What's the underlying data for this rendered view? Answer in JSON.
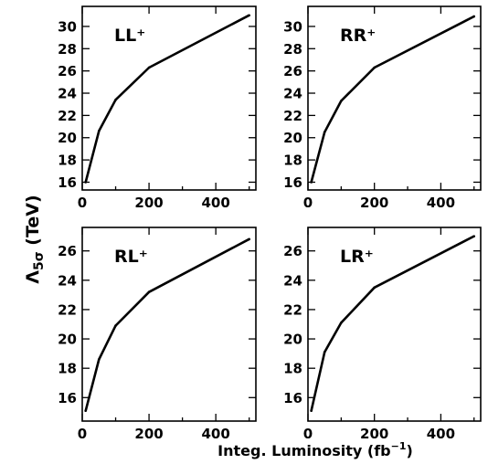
{
  "x_axis_title": "Integ. Luminosity (fb",
  "x_axis_unit_exponent": "−1",
  "x_axis_title_suffix": ")",
  "y_axis_title_symbol": "Λ",
  "y_axis_title_subscript": "5σ",
  "y_axis_title_unit": " (TeV)",
  "chart_data": [
    {
      "type": "line",
      "label": "LL⁺",
      "x": [
        10,
        50,
        100,
        200,
        500
      ],
      "y": [
        16.0,
        20.6,
        23.4,
        26.3,
        31.0
      ],
      "xlim": [
        0,
        520
      ],
      "ylim": [
        15.3,
        31.8
      ],
      "xticks": [
        0,
        200,
        400
      ],
      "xtick_labels": [
        "0",
        "200",
        "400"
      ],
      "yticks": [
        16,
        18,
        20,
        22,
        24,
        26,
        28,
        30
      ],
      "ytick_labels": [
        "16",
        "18",
        "20",
        "22",
        "24",
        "26",
        "28",
        "30"
      ],
      "grid": false
    },
    {
      "type": "line",
      "label": "RR⁺",
      "x": [
        10,
        50,
        100,
        200,
        500
      ],
      "y": [
        16.0,
        20.5,
        23.3,
        26.3,
        30.9
      ],
      "xlim": [
        0,
        520
      ],
      "ylim": [
        15.3,
        31.8
      ],
      "xticks": [
        0,
        200,
        400
      ],
      "xtick_labels": [
        "0",
        "200",
        "400"
      ],
      "yticks": [
        16,
        18,
        20,
        22,
        24,
        26,
        28,
        30
      ],
      "ytick_labels": [
        "16",
        "18",
        "20",
        "22",
        "24",
        "26",
        "28",
        "30"
      ],
      "grid": false
    },
    {
      "type": "line",
      "label": "RL⁺",
      "x": [
        10,
        50,
        100,
        200,
        500
      ],
      "y": [
        15.1,
        18.6,
        20.9,
        23.2,
        26.8
      ],
      "xlim": [
        0,
        520
      ],
      "ylim": [
        14.4,
        27.6
      ],
      "xticks": [
        0,
        200,
        400
      ],
      "xtick_labels": [
        "0",
        "200",
        "400"
      ],
      "yticks": [
        16,
        18,
        20,
        22,
        24,
        26
      ],
      "ytick_labels": [
        "16",
        "18",
        "20",
        "22",
        "24",
        "26"
      ],
      "grid": false
    },
    {
      "type": "line",
      "label": "LR⁺",
      "x": [
        10,
        50,
        100,
        200,
        500
      ],
      "y": [
        15.1,
        19.1,
        21.1,
        23.5,
        27.0
      ],
      "xlim": [
        0,
        520
      ],
      "ylim": [
        14.4,
        27.6
      ],
      "xticks": [
        0,
        200,
        400
      ],
      "xtick_labels": [
        "0",
        "200",
        "400"
      ],
      "yticks": [
        16,
        18,
        20,
        22,
        24,
        26
      ],
      "ytick_labels": [
        "16",
        "18",
        "20",
        "22",
        "24",
        "26"
      ],
      "grid": false
    }
  ]
}
